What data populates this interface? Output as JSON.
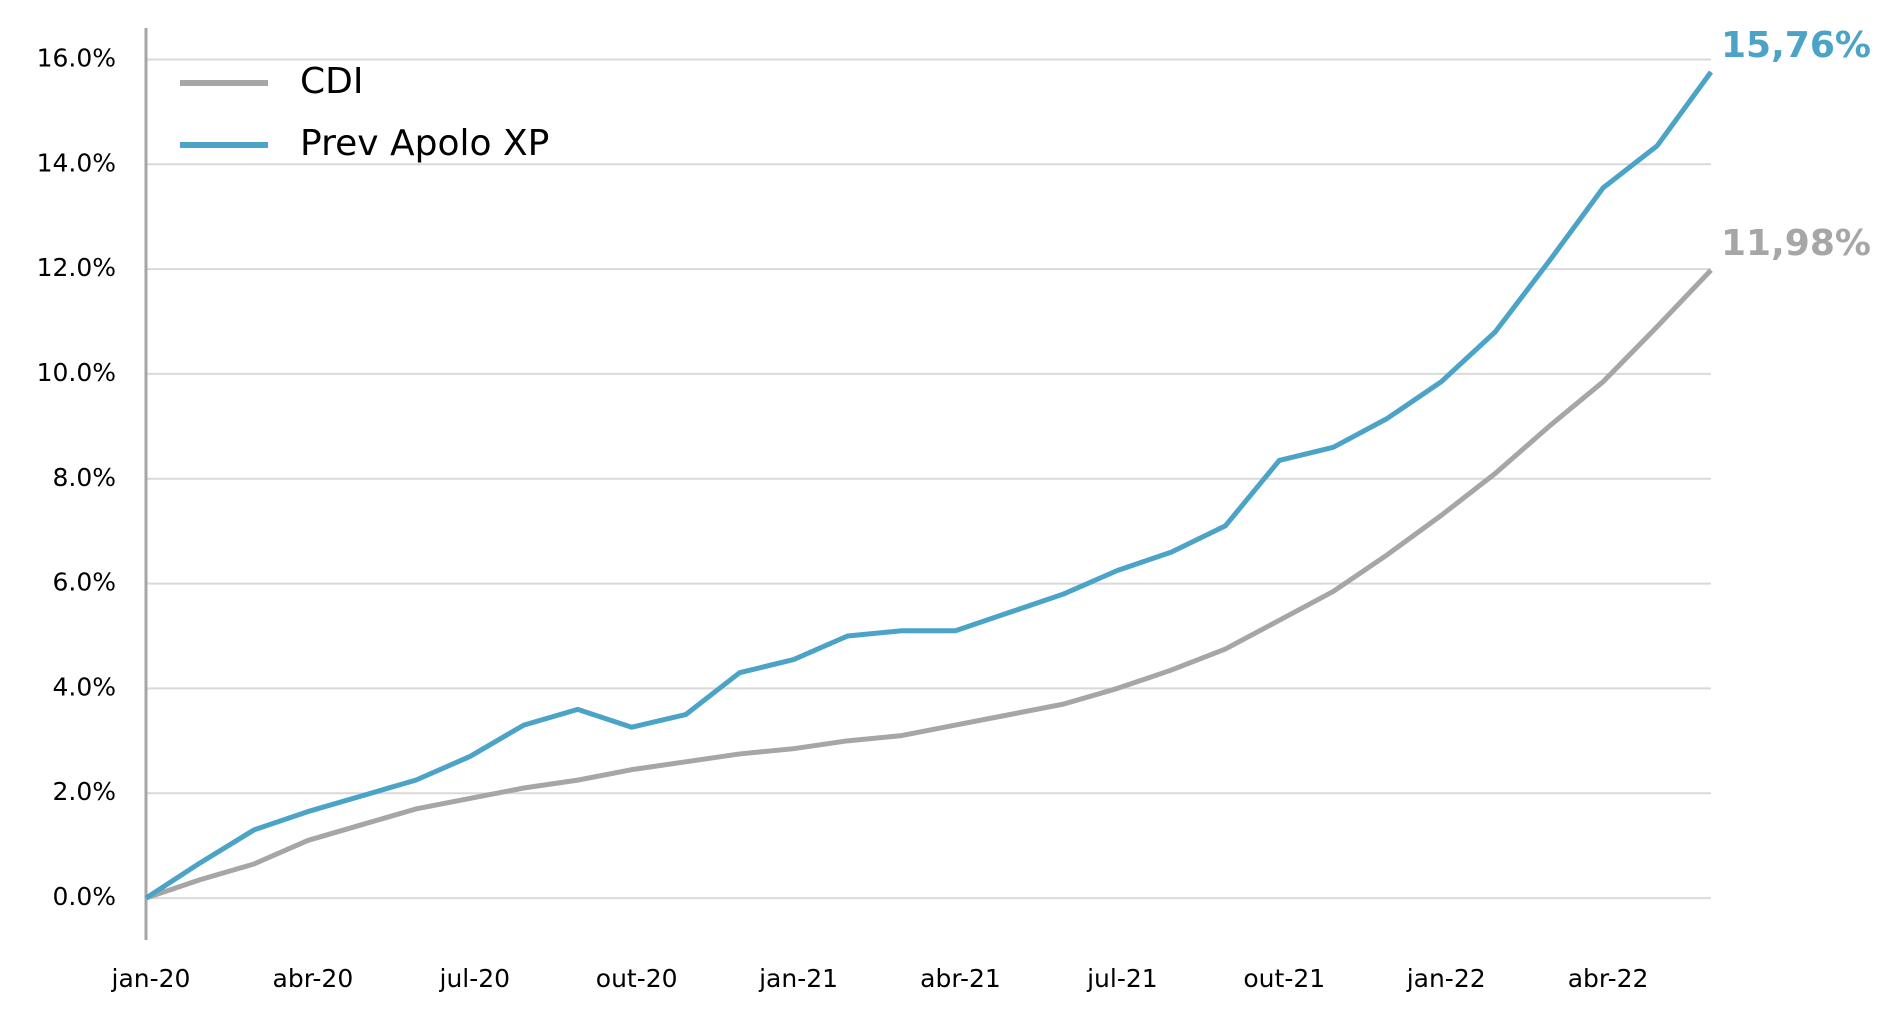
{
  "chart_data": {
    "type": "line",
    "categories": [
      "jan-20",
      null,
      null,
      "abr-20",
      null,
      null,
      "jul-20",
      null,
      null,
      "out-20",
      null,
      null,
      "jan-21",
      null,
      null,
      "abr-21",
      null,
      null,
      "jul-21",
      null,
      null,
      "out-21",
      null,
      null,
      "jan-22",
      null,
      null,
      "abr-22",
      null,
      null
    ],
    "series": [
      {
        "name": "CDI",
        "color": "#a6a6a6",
        "values": [
          0,
          0.35,
          0.65,
          1.1,
          1.4,
          1.7,
          1.9,
          2.1,
          2.25,
          2.45,
          2.6,
          2.75,
          2.85,
          3.0,
          3.1,
          3.3,
          3.5,
          3.7,
          4.0,
          4.35,
          4.75,
          5.3,
          5.85,
          6.55,
          7.3,
          8.1,
          9.0,
          9.85,
          10.9,
          11.98
        ],
        "end_label": "11,98%"
      },
      {
        "name": "Prev Apolo XP",
        "color": "#4ba3c7",
        "values": [
          0,
          0.67,
          1.3,
          1.65,
          1.95,
          2.25,
          2.7,
          3.3,
          3.6,
          3.26,
          3.5,
          4.3,
          4.55,
          5.0,
          5.1,
          5.1,
          5.45,
          5.8,
          6.25,
          6.6,
          7.1,
          8.35,
          8.6,
          9.15,
          9.85,
          10.8,
          12.15,
          13.55,
          14.35,
          15.76
        ],
        "end_label": "15,76%"
      }
    ],
    "ylim": [
      -0.8,
      16.6
    ],
    "yticks": [
      {
        "value": 0,
        "label": "0.0%"
      },
      {
        "value": 2,
        "label": "2.0%"
      },
      {
        "value": 4,
        "label": "4.0%"
      },
      {
        "value": 6,
        "label": "6.0%"
      },
      {
        "value": 8,
        "label": "8.0%"
      },
      {
        "value": 10,
        "label": "10.0%"
      },
      {
        "value": 12,
        "label": "12.0%"
      },
      {
        "value": 14,
        "label": "14.0%"
      },
      {
        "value": 16,
        "label": "16.0%"
      }
    ],
    "grid": true,
    "legend": "upper left"
  }
}
